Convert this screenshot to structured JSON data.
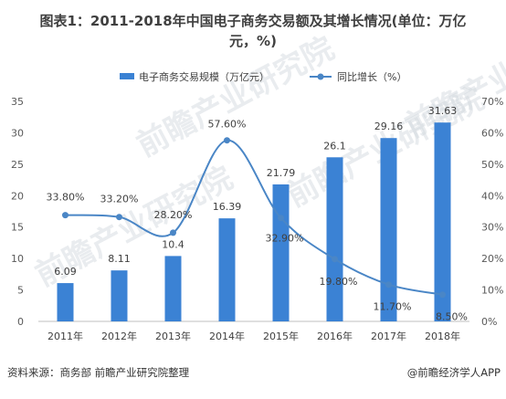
{
  "title_line1": "图表1：2011-2018年中国电子商务交易额及其增长情况(单位：万亿",
  "title_line2": "元，%)",
  "source": "资料来源：商务部 前瞻产业研究院整理",
  "credit": "@前瞻经济学人APP",
  "watermark": "前瞻产业研究院",
  "colors": {
    "bar": "#3b82d4",
    "line": "#4a86c6",
    "axis": "#bfbfbf"
  },
  "chart_data": {
    "type": "bar",
    "categories": [
      "2011年",
      "2012年",
      "2013年",
      "2014年",
      "2015年",
      "2016年",
      "2017年",
      "2018年"
    ],
    "series": [
      {
        "name": "电子商务交易规模（万亿元）",
        "type": "bar",
        "axis": "left",
        "values": [
          6.09,
          8.11,
          10.4,
          16.39,
          21.79,
          26.1,
          29.16,
          31.63
        ],
        "labels": [
          "6.09",
          "8.11",
          "10.4",
          "16.39",
          "21.79",
          "26.1",
          "29.16",
          "31.63"
        ]
      },
      {
        "name": "同比增长（%）",
        "type": "line",
        "axis": "right",
        "smooth": true,
        "values": [
          33.8,
          33.2,
          28.2,
          57.6,
          32.9,
          19.8,
          11.7,
          8.5
        ],
        "labels": [
          "33.80%",
          "33.20%",
          "28.20%",
          "57.60%",
          "32.90%",
          "19.80%",
          "11.70%",
          "8.50%"
        ]
      }
    ],
    "y_left": {
      "min": 0,
      "max": 35,
      "ticks": [
        "0",
        "5",
        "10",
        "15",
        "20",
        "25",
        "30",
        "35"
      ]
    },
    "y_right": {
      "min": 0,
      "max": 70,
      "ticks": [
        "0%",
        "10%",
        "20%",
        "30%",
        "40%",
        "50%",
        "60%",
        "70%"
      ]
    },
    "legend_position": "top-center",
    "grid": false
  }
}
